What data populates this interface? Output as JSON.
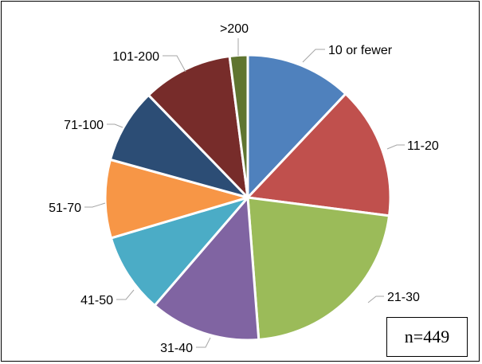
{
  "chart_data": {
    "type": "pie",
    "title": "",
    "categories": [
      "10 or fewer",
      "11-20",
      "21-30",
      "31-40",
      "41-50",
      "51-70",
      "71-100",
      "101-200",
      ">200"
    ],
    "values": [
      11.8,
      14.7,
      21.3,
      12.3,
      8.9,
      8.7,
      8.3,
      10.0,
      2.0
    ],
    "colors": [
      "#4f81bd",
      "#c0504d",
      "#9bbb59",
      "#8064a2",
      "#4bacc6",
      "#f79646",
      "#2c4d75",
      "#772c2a",
      "#5f7530"
    ],
    "start_angle_deg": 0,
    "direction": "clockwise",
    "slice_border_color": "#ffffff",
    "leader_line_color": "#a6a6a6"
  },
  "annotation": {
    "n_label": "n=449"
  }
}
